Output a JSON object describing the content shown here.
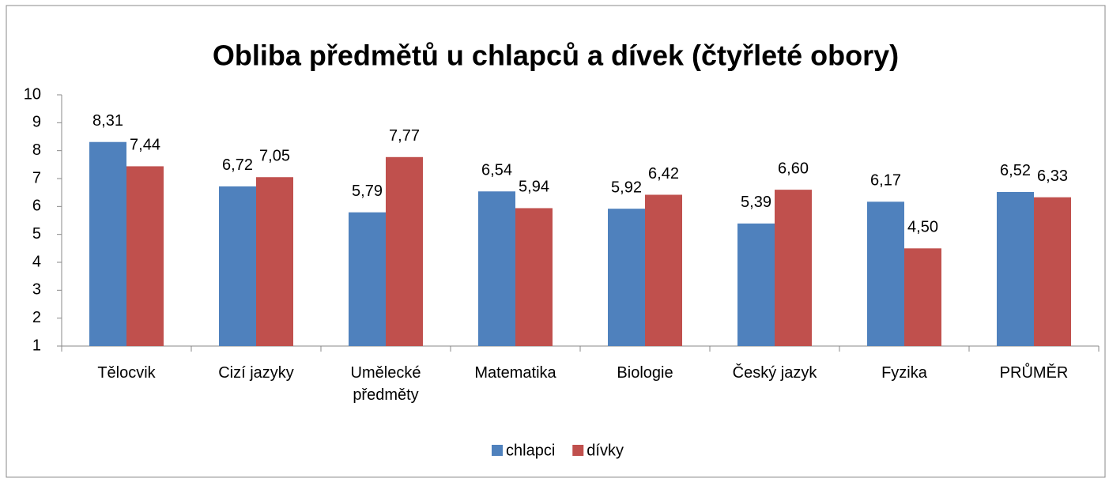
{
  "chart_data": {
    "type": "bar",
    "title": "Obliba předmětů u chlapců a dívek (čtyřleté obory)",
    "categories": [
      "Tělocvik",
      "Cizí jazyky",
      "Umělecké předměty",
      "Matematika",
      "Biologie",
      "Český jazyk",
      "Fyzika",
      "PRŮMĚR"
    ],
    "series": [
      {
        "name": "chlapci",
        "color": "#4f81bd",
        "values": [
          8.31,
          6.72,
          5.79,
          6.54,
          5.92,
          5.39,
          6.17,
          6.52
        ],
        "value_labels": [
          "8,31",
          "6,72",
          "5,79",
          "6,54",
          "5,92",
          "5,39",
          "6,17",
          "6,52"
        ]
      },
      {
        "name": "dívky",
        "color": "#c0504d",
        "values": [
          7.44,
          7.05,
          7.77,
          5.94,
          6.42,
          6.6,
          4.5,
          6.33
        ],
        "value_labels": [
          "7,44",
          "7,05",
          "7,77",
          "5,94",
          "6,42",
          "6,60",
          "4,50",
          "6,33"
        ]
      }
    ],
    "ylim": [
      1,
      10
    ],
    "yticks": [
      1,
      2,
      3,
      4,
      5,
      6,
      7,
      8,
      9,
      10
    ],
    "legend": "bottom"
  }
}
